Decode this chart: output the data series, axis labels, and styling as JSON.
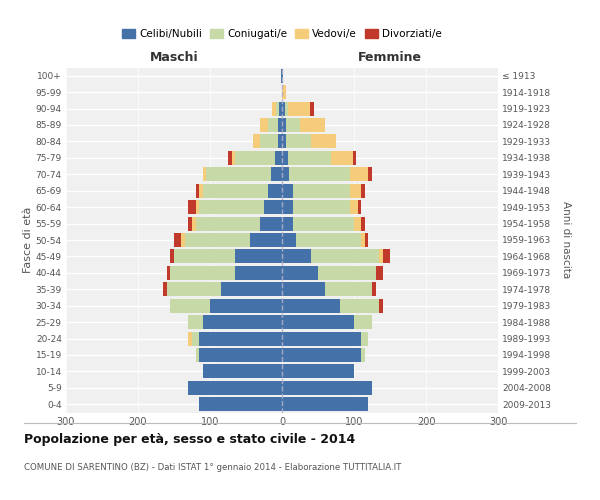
{
  "age_groups": [
    "0-4",
    "5-9",
    "10-14",
    "15-19",
    "20-24",
    "25-29",
    "30-34",
    "35-39",
    "40-44",
    "45-49",
    "50-54",
    "55-59",
    "60-64",
    "65-69",
    "70-74",
    "75-79",
    "80-84",
    "85-89",
    "90-94",
    "95-99",
    "100+"
  ],
  "birth_years": [
    "2009-2013",
    "2004-2008",
    "1999-2003",
    "1994-1998",
    "1989-1993",
    "1984-1988",
    "1979-1983",
    "1974-1978",
    "1969-1973",
    "1964-1968",
    "1959-1963",
    "1954-1958",
    "1949-1953",
    "1944-1948",
    "1939-1943",
    "1934-1938",
    "1929-1933",
    "1924-1928",
    "1919-1923",
    "1914-1918",
    "≤ 1913"
  ],
  "maschi": {
    "celibi": [
      115,
      130,
      110,
      115,
      115,
      110,
      100,
      85,
      65,
      65,
      45,
      30,
      25,
      20,
      15,
      10,
      5,
      5,
      4,
      0,
      1
    ],
    "coniugati": [
      0,
      0,
      0,
      5,
      10,
      20,
      55,
      75,
      90,
      85,
      90,
      90,
      90,
      90,
      90,
      55,
      25,
      15,
      5,
      0,
      0
    ],
    "vedovi": [
      0,
      0,
      0,
      0,
      5,
      0,
      0,
      0,
      0,
      0,
      5,
      5,
      5,
      5,
      5,
      5,
      10,
      10,
      5,
      0,
      0
    ],
    "divorziati": [
      0,
      0,
      0,
      0,
      0,
      0,
      0,
      5,
      5,
      5,
      10,
      5,
      10,
      5,
      0,
      5,
      0,
      0,
      0,
      0,
      0
    ]
  },
  "femmine": {
    "nubili": [
      120,
      125,
      100,
      110,
      110,
      100,
      80,
      60,
      50,
      40,
      20,
      15,
      15,
      15,
      10,
      8,
      5,
      5,
      4,
      0,
      1
    ],
    "coniugate": [
      0,
      0,
      0,
      5,
      10,
      25,
      55,
      65,
      80,
      95,
      90,
      85,
      80,
      80,
      85,
      60,
      35,
      20,
      5,
      0,
      0
    ],
    "vedove": [
      0,
      0,
      0,
      0,
      0,
      0,
      0,
      0,
      0,
      5,
      5,
      10,
      10,
      15,
      25,
      30,
      35,
      35,
      30,
      5,
      0
    ],
    "divorziate": [
      0,
      0,
      0,
      0,
      0,
      0,
      5,
      5,
      10,
      10,
      5,
      5,
      5,
      5,
      5,
      5,
      0,
      0,
      5,
      0,
      0
    ]
  },
  "colors": {
    "celibi": "#4472a8",
    "coniugati": "#c8d9a8",
    "vedovi": "#f5cc7a",
    "divorziati": "#c0392b"
  },
  "xlim": 300,
  "title": "Popolazione per età, sesso e stato civile - 2014",
  "subtitle": "COMUNE DI SARENTINO (BZ) - Dati ISTAT 1° gennaio 2014 - Elaborazione TUTTITALIA.IT",
  "ylabel_left": "Fasce di età",
  "ylabel_right": "Anni di nascita",
  "xlabel_maschi": "Maschi",
  "xlabel_femmine": "Femmine",
  "legend_labels": [
    "Celibi/Nubili",
    "Coniugati/e",
    "Vedovi/e",
    "Divorziati/e"
  ],
  "bg_color": "#f0f0f0"
}
